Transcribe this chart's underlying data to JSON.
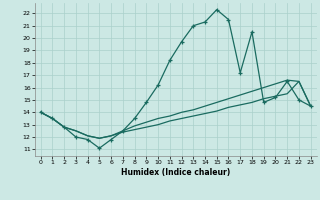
{
  "xlabel": "Humidex (Indice chaleur)",
  "bg_color": "#cce8e4",
  "grid_color": "#aad0cb",
  "line_color": "#1a6b60",
  "xlim": [
    -0.5,
    23.5
  ],
  "ylim": [
    10.5,
    22.8
  ],
  "yticks": [
    11,
    12,
    13,
    14,
    15,
    16,
    17,
    18,
    19,
    20,
    21,
    22
  ],
  "xticks": [
    0,
    1,
    2,
    3,
    4,
    5,
    6,
    7,
    8,
    9,
    10,
    11,
    12,
    13,
    14,
    15,
    16,
    17,
    18,
    19,
    20,
    21,
    22,
    23
  ],
  "line1_x": [
    0,
    1,
    2,
    3,
    4,
    5,
    6,
    7,
    8,
    9,
    10,
    11,
    12,
    13,
    14,
    15,
    16,
    17,
    18,
    19,
    20,
    21,
    22,
    23
  ],
  "line1_y": [
    14.0,
    13.5,
    12.8,
    12.0,
    11.8,
    11.1,
    11.8,
    12.5,
    13.5,
    14.8,
    16.2,
    18.2,
    19.7,
    21.0,
    21.3,
    22.3,
    21.5,
    17.2,
    20.5,
    14.8,
    15.2,
    16.5,
    15.0,
    14.5
  ],
  "line2_x": [
    0,
    1,
    2,
    3,
    4,
    5,
    6,
    7,
    8,
    9,
    10,
    11,
    12,
    13,
    14,
    15,
    16,
    17,
    18,
    19,
    20,
    21,
    22,
    23
  ],
  "line2_y": [
    14.0,
    13.5,
    12.8,
    12.5,
    12.1,
    11.9,
    12.1,
    12.4,
    12.6,
    12.8,
    13.0,
    13.3,
    13.5,
    13.7,
    13.9,
    14.1,
    14.4,
    14.6,
    14.8,
    15.1,
    15.3,
    15.5,
    16.5,
    14.5
  ],
  "line3_x": [
    0,
    1,
    2,
    3,
    4,
    5,
    6,
    7,
    8,
    9,
    10,
    11,
    12,
    13,
    14,
    15,
    16,
    17,
    18,
    19,
    20,
    21,
    22,
    23
  ],
  "line3_y": [
    14.0,
    13.5,
    12.8,
    12.5,
    12.1,
    11.9,
    12.1,
    12.5,
    12.9,
    13.2,
    13.5,
    13.7,
    14.0,
    14.2,
    14.5,
    14.8,
    15.1,
    15.4,
    15.7,
    16.0,
    16.3,
    16.6,
    16.5,
    14.5
  ]
}
